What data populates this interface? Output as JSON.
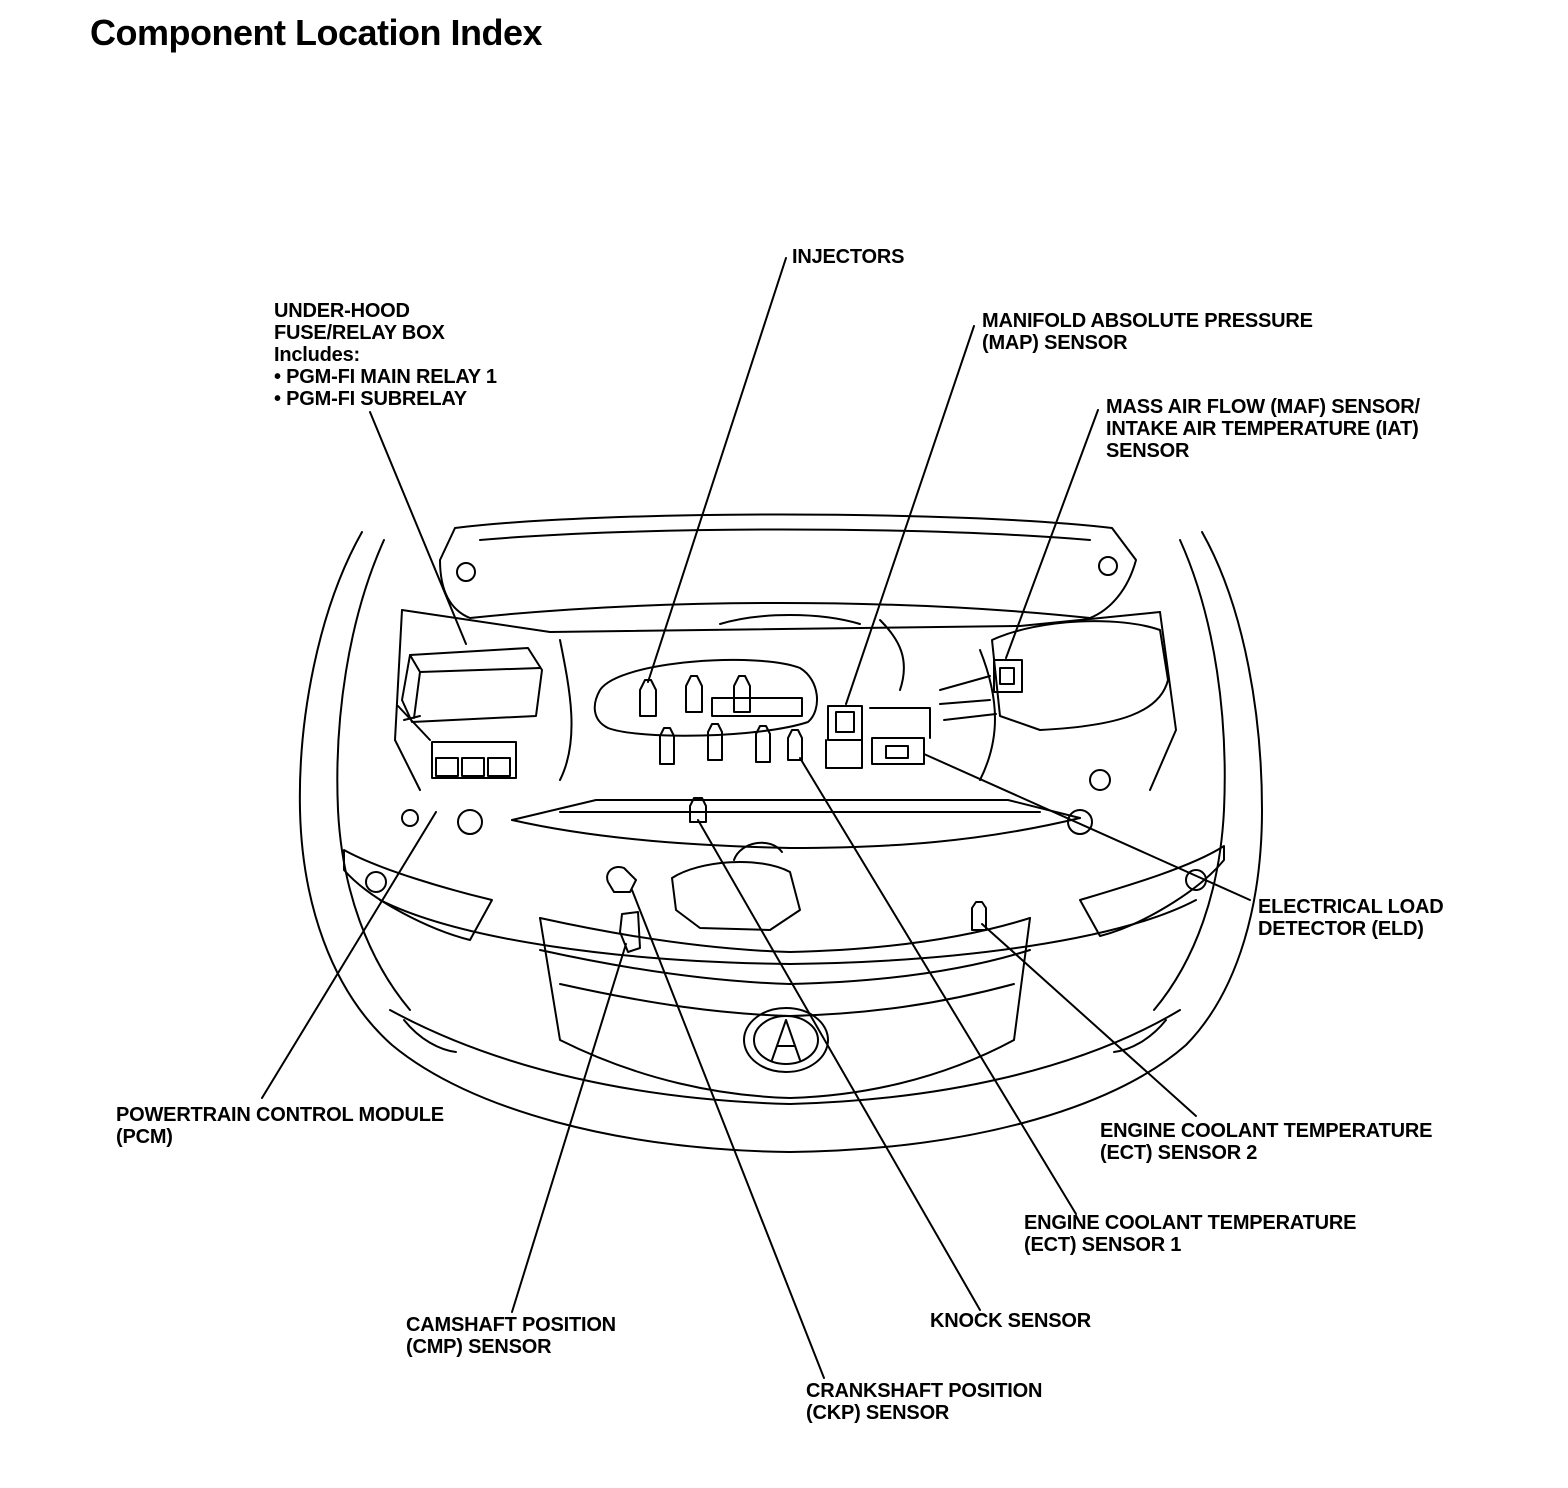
{
  "title": "Component Location Index",
  "labels": {
    "fuse_box": [
      "UNDER-HOOD",
      "FUSE/RELAY BOX",
      "Includes:",
      "• PGM-FI MAIN RELAY 1",
      "• PGM-FI SUBRELAY"
    ],
    "injectors": [
      "INJECTORS"
    ],
    "map_sensor": [
      "MANIFOLD ABSOLUTE PRESSURE",
      "(MAP) SENSOR"
    ],
    "maf_iat_sensor": [
      "MASS AIR FLOW (MAF) SENSOR/",
      "INTAKE AIR TEMPERATURE (IAT)",
      "SENSOR"
    ],
    "eld": [
      "ELECTRICAL LOAD",
      "DETECTOR (ELD)"
    ],
    "ect2": [
      "ENGINE COOLANT TEMPERATURE",
      "(ECT) SENSOR 2"
    ],
    "ect1": [
      "ENGINE COOLANT TEMPERATURE",
      "(ECT) SENSOR 1"
    ],
    "knock": [
      "KNOCK SENSOR"
    ],
    "ckp": [
      "CRANKSHAFT POSITION",
      "(CKP) SENSOR"
    ],
    "cmp": [
      "CAMSHAFT POSITION",
      "(CMP) SENSOR"
    ],
    "pcm": [
      "POWERTRAIN CONTROL MODULE",
      "(PCM)"
    ]
  }
}
